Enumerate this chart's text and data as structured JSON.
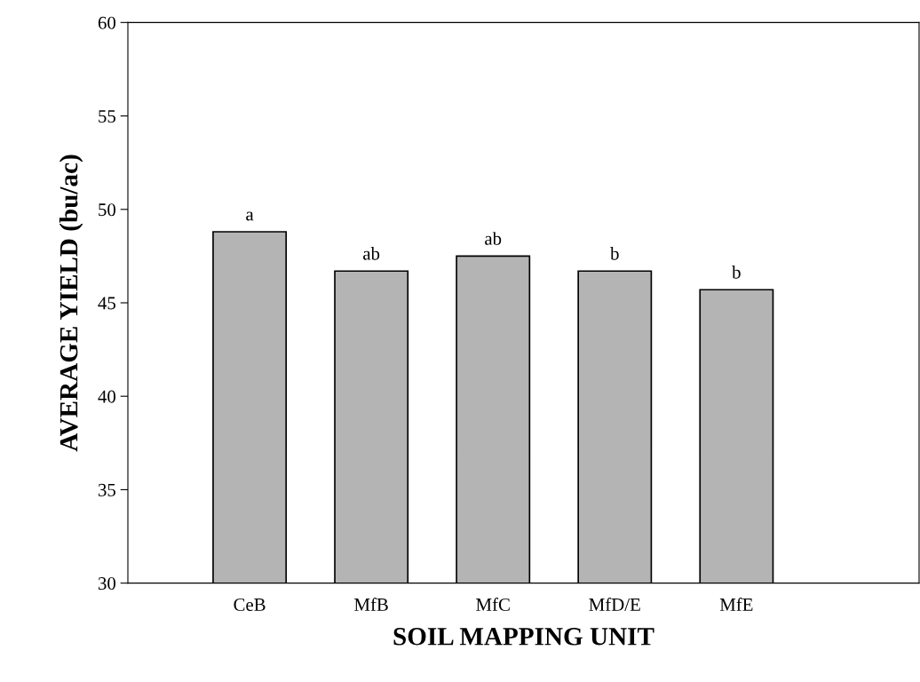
{
  "chart_data": {
    "type": "bar",
    "xlabel": "SOIL MAPPING UNIT",
    "ylabel": "AVERAGE YIELD (bu/ac)",
    "categories": [
      "CeB",
      "MfB",
      "MfC",
      "MfD/E",
      "MfE"
    ],
    "values": [
      48.8,
      46.7,
      47.5,
      46.7,
      45.7
    ],
    "color": "#b4b4b4",
    "ylim": [
      30,
      60
    ],
    "yticks": [
      30,
      35,
      40,
      45,
      50,
      55,
      60
    ],
    "annotations": [
      {
        "text": "a",
        "x": "CeB",
        "y": 48.8
      },
      {
        "text": "ab",
        "x": "MfB",
        "y": 46.7
      },
      {
        "text": "ab",
        "x": "MfC",
        "y": 47.5
      },
      {
        "text": "b",
        "x": "MfD/E",
        "y": 46.7
      },
      {
        "text": "b",
        "x": "MfE",
        "y": 45.7
      }
    ]
  }
}
